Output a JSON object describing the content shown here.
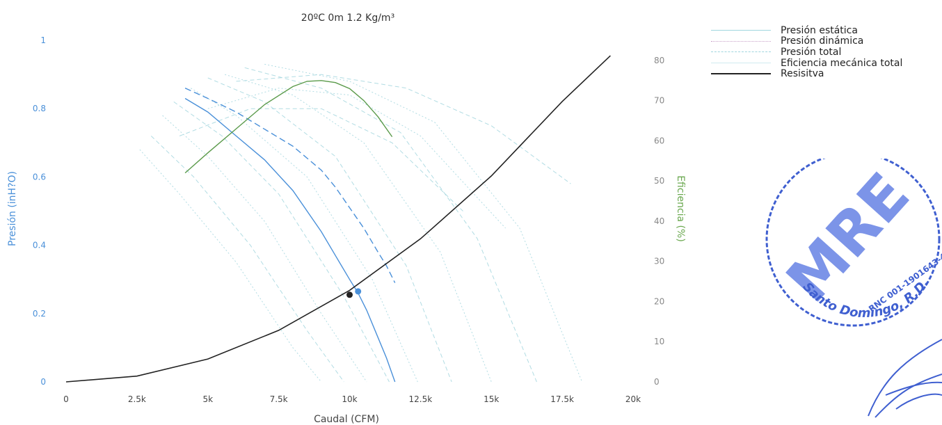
{
  "chart_data": {
    "type": "line",
    "title": "20ºC 0m 1.2 Kg/m³",
    "xlabel": "Caudal (CFM)",
    "ylabel_left": "Presión (inH?O)",
    "ylabel_right": "Eficiencia (%)",
    "xlim": [
      0,
      20000
    ],
    "ylim_left": [
      0,
      1
    ],
    "ylim_right": [
      0,
      85
    ],
    "x_ticks": [
      "0",
      "2.5k",
      "5k",
      "7.5k",
      "10k",
      "12.5k",
      "15k",
      "17.5k",
      "20k"
    ],
    "y_left_ticks": [
      "0",
      "0.2",
      "0.4",
      "0.6",
      "0.8",
      "1"
    ],
    "y_right_ticks": [
      "0",
      "10",
      "20",
      "30",
      "40",
      "50",
      "60",
      "70",
      "80"
    ],
    "grid": false,
    "legend_position": "top-right",
    "legend": [
      "Presión estática",
      "Presión dinámica",
      "Presión total",
      "Eficiencia mecánica total",
      "Resisitva"
    ],
    "series": [
      {
        "name": "Presión estática",
        "axis": "left",
        "color": "#4a90d9",
        "x": [
          4200,
          5000,
          6000,
          7000,
          8000,
          9000,
          9500,
          10000,
          10300,
          10600,
          11000,
          11300,
          11600
        ],
        "y": [
          0.83,
          0.79,
          0.72,
          0.65,
          0.56,
          0.44,
          0.37,
          0.3,
          0.26,
          0.21,
          0.13,
          0.07,
          0.0
        ]
      },
      {
        "name": "Presión total",
        "axis": "left",
        "color": "#4a90d9",
        "x": [
          4200,
          5000,
          6000,
          7000,
          8000,
          9000,
          9500,
          10000,
          10500,
          11000,
          11300,
          11600
        ],
        "y": [
          0.86,
          0.83,
          0.79,
          0.74,
          0.69,
          0.62,
          0.57,
          0.51,
          0.45,
          0.38,
          0.34,
          0.29
        ]
      },
      {
        "name": "Eficiencia mecánica total",
        "axis": "right",
        "color": "#5a9a4a",
        "x": [
          4200,
          5000,
          6000,
          7000,
          8000,
          8500,
          9000,
          9500,
          10000,
          10500,
          11000,
          11500
        ],
        "y": [
          52,
          57,
          63,
          69,
          73.5,
          74.8,
          75,
          74.5,
          73,
          70,
          66,
          61
        ]
      },
      {
        "name": "Resisitva",
        "axis": "left",
        "color": "#222222",
        "x": [
          0,
          2500,
          5000,
          7500,
          10000,
          12500,
          15000,
          17500,
          19200
        ],
        "y": [
          0.0,
          0.017,
          0.067,
          0.151,
          0.268,
          0.419,
          0.603,
          0.821,
          0.955
        ]
      }
    ],
    "background_curves": {
      "color": "#a8d8e0",
      "lines": [
        {
          "x": [
            2600,
            4000,
            6000,
            8000,
            9000
          ],
          "y": [
            0.68,
            0.55,
            0.35,
            0.1,
            0.0
          ]
        },
        {
          "x": [
            3000,
            4500,
            6500,
            8500,
            9800
          ],
          "y": [
            0.72,
            0.6,
            0.4,
            0.15,
            0.0
          ]
        },
        {
          "x": [
            3400,
            5000,
            7000,
            9000,
            10600
          ],
          "y": [
            0.78,
            0.66,
            0.47,
            0.2,
            0.0
          ]
        },
        {
          "x": [
            3800,
            5500,
            7500,
            9800,
            11400
          ],
          "y": [
            0.82,
            0.72,
            0.55,
            0.25,
            0.0
          ]
        },
        {
          "x": [
            4400,
            6000,
            8500,
            10800,
            12400
          ],
          "y": [
            0.86,
            0.78,
            0.6,
            0.3,
            0.0
          ]
        },
        {
          "x": [
            5000,
            7000,
            9500,
            12000,
            13600
          ],
          "y": [
            0.89,
            0.82,
            0.66,
            0.34,
            0.0
          ]
        },
        {
          "x": [
            5600,
            8000,
            10500,
            13200,
            15000
          ],
          "y": [
            0.9,
            0.84,
            0.7,
            0.38,
            0.0
          ]
        },
        {
          "x": [
            6300,
            9000,
            11800,
            14500,
            16600
          ],
          "y": [
            0.92,
            0.86,
            0.73,
            0.42,
            0.0
          ]
        },
        {
          "x": [
            7000,
            10000,
            13000,
            16000,
            18200
          ],
          "y": [
            0.93,
            0.88,
            0.76,
            0.45,
            0.0
          ]
        },
        {
          "x": [
            6000,
            9000,
            12000,
            15000,
            17800
          ],
          "y": [
            0.88,
            0.9,
            0.86,
            0.75,
            0.58
          ]
        },
        {
          "x": [
            5000,
            7500,
            10000,
            12500,
            15500
          ],
          "y": [
            0.8,
            0.86,
            0.84,
            0.72,
            0.45
          ]
        },
        {
          "x": [
            4000,
            6500,
            9000,
            11500,
            14000
          ],
          "y": [
            0.72,
            0.8,
            0.8,
            0.7,
            0.5
          ]
        }
      ]
    },
    "operating_points": [
      {
        "x": 10000,
        "y": 0.255,
        "color": "#222222"
      },
      {
        "x": 10300,
        "y": 0.265,
        "color": "#4a90d9"
      }
    ]
  },
  "legend_colors": {
    "static": "#9fd6df",
    "dynamic": "#c8a0c8",
    "total": "#9fd6df",
    "efficiency": "#9fd6df",
    "resistive": "#222222"
  },
  "stamp": {
    "company": "MRE",
    "rnc": "RNC 001-1901643-4",
    "city": "Santo Domingo, R.D."
  }
}
